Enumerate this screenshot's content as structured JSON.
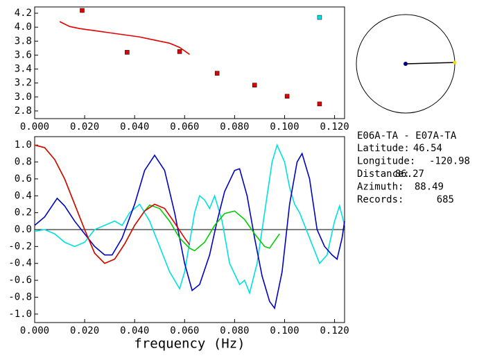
{
  "chart_data": [
    {
      "type": "scatter",
      "xlim": [
        0,
        0.124
      ],
      "ylim": [
        2.69,
        4.29
      ],
      "xticks": [
        {
          "value": 0,
          "label": "0.000"
        },
        {
          "value": 0.02,
          "label": "0.020"
        },
        {
          "value": 0.04,
          "label": "0.040"
        },
        {
          "value": 0.06,
          "label": "0.060"
        },
        {
          "value": 0.08,
          "label": "0.080"
        },
        {
          "value": 0.1,
          "label": "0.100"
        },
        {
          "value": 0.12,
          "label": "0.120"
        }
      ],
      "yticks": [
        2.8,
        3.2,
        3.4,
        3.6,
        3.8,
        {
          "value": 4,
          "label": "4.0"
        },
        4.2,
        {
          "value": 3,
          "label": "3.0"
        }
      ],
      "series": [
        {
          "type": "line",
          "color": "#e00000",
          "x": [
            0.01,
            0.014,
            0.018,
            0.022,
            0.026,
            0.03,
            0.034,
            0.038,
            0.042,
            0.046,
            0.05,
            0.054,
            0.058,
            0.062
          ],
          "values": [
            4.08,
            4.01,
            3.98,
            3.96,
            3.94,
            3.92,
            3.9,
            3.88,
            3.86,
            3.83,
            3.8,
            3.77,
            3.71,
            3.61
          ]
        },
        {
          "type": "scatter",
          "color": "#e00000",
          "x": [
            0.019,
            0.037,
            0.058,
            0.073,
            0.088,
            0.101,
            0.114
          ],
          "values": [
            4.24,
            3.64,
            3.65,
            3.34,
            3.17,
            3.01,
            2.9
          ]
        },
        {
          "type": "scatter",
          "color": "#00e0e0",
          "x": [
            0.114
          ],
          "values": [
            4.14
          ]
        }
      ]
    },
    {
      "type": "line",
      "xlabel": "frequency (Hz)",
      "xlim": [
        0,
        0.124
      ],
      "ylim": [
        -1.1,
        1.1
      ],
      "xticks": [
        {
          "value": 0,
          "label": "0.000"
        },
        {
          "value": 0.02,
          "label": "0.020"
        },
        {
          "value": 0.04,
          "label": "0.040"
        },
        {
          "value": 0.06,
          "label": "0.060"
        },
        {
          "value": 0.08,
          "label": "0.080"
        },
        {
          "value": 0.1,
          "label": "0.100"
        },
        {
          "value": 0.12,
          "label": "0.120"
        }
      ],
      "yticks": [
        {
          "value": -1,
          "label": "-1.0"
        },
        -0.8,
        -0.6,
        -0.4,
        -0.2,
        {
          "value": 0,
          "label": "0.0"
        },
        0.2,
        0.4,
        0.6,
        0.8,
        {
          "value": 1,
          "label": "1.0"
        }
      ],
      "zero_line": true,
      "series": [
        {
          "color": "#00e0e0",
          "x": [
            0,
            0.004,
            0.008,
            0.012,
            0.016,
            0.02,
            0.024,
            0.028,
            0.032,
            0.035,
            0.038,
            0.042,
            0.046,
            0.05,
            0.054,
            0.058,
            0.06,
            0.064,
            0.066,
            0.068,
            0.07,
            0.072,
            0.075,
            0.078,
            0.082,
            0.084,
            0.086,
            0.089,
            0.092,
            0.095,
            0.097,
            0.1,
            0.102,
            0.104,
            0.106,
            0.11,
            0.114,
            0.117,
            0.12,
            0.122,
            0.124
          ],
          "values": [
            -0.02,
            0.0,
            -0.05,
            -0.15,
            -0.2,
            -0.15,
            0.0,
            0.05,
            0.1,
            0.05,
            0.2,
            0.3,
            0.1,
            -0.2,
            -0.5,
            -0.7,
            -0.5,
            0.2,
            0.4,
            0.35,
            0.25,
            0.4,
            0.1,
            -0.4,
            -0.65,
            -0.6,
            -0.75,
            -0.4,
            0.2,
            0.8,
            1.0,
            0.8,
            0.5,
            0.3,
            0.2,
            -0.1,
            -0.4,
            -0.3,
            0.1,
            0.28,
            0.05
          ]
        },
        {
          "color": "#0000c0",
          "x": [
            0,
            0.004,
            0.009,
            0.012,
            0.016,
            0.02,
            0.024,
            0.028,
            0.031,
            0.035,
            0.04,
            0.044,
            0.048,
            0.052,
            0.056,
            0.06,
            0.063,
            0.066,
            0.07,
            0.073,
            0.076,
            0.08,
            0.082,
            0.085,
            0.088,
            0.091,
            0.094,
            0.096,
            0.099,
            0.102,
            0.105,
            0.107,
            0.11,
            0.113,
            0.116,
            0.119,
            0.121,
            0.123,
            0.124
          ],
          "values": [
            0.05,
            0.15,
            0.37,
            0.28,
            0.1,
            -0.05,
            -0.2,
            -0.3,
            -0.3,
            -0.1,
            0.3,
            0.7,
            0.88,
            0.7,
            0.2,
            -0.4,
            -0.72,
            -0.65,
            -0.3,
            0.1,
            0.45,
            0.7,
            0.72,
            0.4,
            -0.1,
            -0.55,
            -0.85,
            -0.93,
            -0.5,
            0.3,
            0.8,
            0.9,
            0.6,
            0.0,
            -0.2,
            -0.3,
            -0.35,
            -0.1,
            0.1
          ]
        },
        {
          "color": "#00cc00",
          "x": [
            0,
            0.004,
            0.008,
            0.012,
            0.016,
            0.02,
            0.024,
            0.028,
            0.032,
            0.036,
            0.04,
            0.044,
            0.046,
            0.05,
            0.054,
            0.058,
            0.062,
            0.064,
            0.068,
            0.072,
            0.076,
            0.08,
            0.084,
            0.088,
            0.092,
            0.094,
            0.098
          ],
          "values": [
            1.0,
            0.97,
            0.83,
            0.6,
            0.3,
            0.0,
            -0.28,
            -0.4,
            -0.35,
            -0.17,
            0.05,
            0.22,
            0.29,
            0.25,
            0.1,
            -0.1,
            -0.22,
            -0.25,
            -0.15,
            0.05,
            0.19,
            0.22,
            0.12,
            -0.05,
            -0.2,
            -0.22,
            -0.05
          ]
        },
        {
          "color": "#e00000",
          "x": [
            0,
            0.004,
            0.008,
            0.012,
            0.016,
            0.02,
            0.024,
            0.028,
            0.032,
            0.036,
            0.04,
            0.044,
            0.048,
            0.052,
            0.056,
            0.06,
            0.062
          ],
          "values": [
            1.0,
            0.97,
            0.83,
            0.6,
            0.3,
            0.0,
            -0.28,
            -0.4,
            -0.35,
            -0.17,
            0.05,
            0.22,
            0.3,
            0.25,
            0.08,
            -0.1,
            -0.18
          ]
        }
      ]
    }
  ],
  "info": {
    "title": "E06A-TA - E07A-TA",
    "fields": [
      {
        "label": "Latitude:",
        "value": 46.54
      },
      {
        "label": "Longitude:",
        "value": -120.98
      },
      {
        "label": "Distance:",
        "value": 86.27
      },
      {
        "label": "Azimuth:",
        "value": 88.49
      },
      {
        "label": "Records:",
        "value": 685
      }
    ],
    "azimuth_field": 3
  }
}
